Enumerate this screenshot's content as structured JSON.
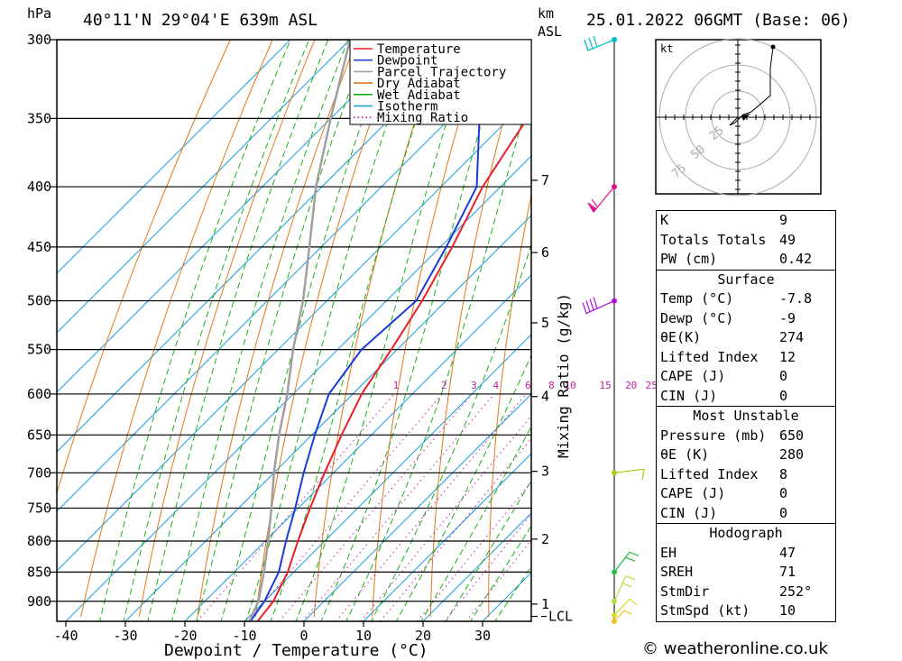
{
  "header": {
    "location": "40°11'N  29°04'E  639m  ASL",
    "datetime": "25.01.2022  06GMT  (Base: 06)",
    "left_unit": "hPa",
    "km_unit": "km",
    "asl_unit": "ASL"
  },
  "chart_data": {
    "type": "line",
    "title": "",
    "xlabel": "Dewpoint / Temperature (°C)",
    "ylabel": "hPa",
    "y2label": "Mixing Ratio (g/kg)",
    "x_ticks": [
      -40,
      -30,
      -20,
      -10,
      0,
      10,
      20,
      30
    ],
    "pressure_levels": [
      300,
      350,
      400,
      450,
      500,
      550,
      600,
      650,
      700,
      750,
      800,
      850,
      900
    ],
    "xlim": [
      -40,
      38
    ],
    "ylim": [
      936,
      300
    ],
    "km_ticks": [
      {
        "label": "7",
        "p": 395
      },
      {
        "label": "6",
        "p": 455
      },
      {
        "label": "5",
        "p": 522
      },
      {
        "label": "4",
        "p": 603
      },
      {
        "label": "3",
        "p": 698
      },
      {
        "label": "2",
        "p": 797
      },
      {
        "label": "1",
        "p": 905
      },
      {
        "label": "LCL",
        "p": 927
      }
    ],
    "mixing_ratio_labels": [
      "1",
      "2",
      "3",
      "4",
      "6",
      "8",
      "10",
      "15",
      "20",
      "25"
    ],
    "mixing_ratio_values": [
      1,
      2,
      3,
      4,
      6,
      8,
      10,
      15,
      20,
      25
    ],
    "legend": {
      "placement": "top-center",
      "entries": [
        {
          "name": "Temperature",
          "color": "#e8202a"
        },
        {
          "name": "Dewpoint",
          "color": "#1c3cd8"
        },
        {
          "name": "Parcel Trajectory",
          "color": "#a0a0a0"
        },
        {
          "name": "Dry Adiabat",
          "color": "#e07818"
        },
        {
          "name": "Wet Adiabat",
          "color": "#18b018"
        },
        {
          "name": "Isotherm",
          "color": "#189ce0"
        },
        {
          "name": "Mixing Ratio",
          "color": "#c818a8"
        }
      ]
    },
    "series": [
      {
        "name": "Temperature",
        "points": [
          [
            936,
            -7.8
          ],
          [
            900,
            -8.5
          ],
          [
            850,
            -11
          ],
          [
            800,
            -14.5
          ],
          [
            750,
            -18
          ],
          [
            700,
            -21.5
          ],
          [
            650,
            -25
          ],
          [
            600,
            -28.5
          ],
          [
            550,
            -31
          ],
          [
            500,
            -34
          ],
          [
            450,
            -38
          ],
          [
            400,
            -43
          ],
          [
            350,
            -47
          ],
          [
            300,
            -49
          ]
        ]
      },
      {
        "name": "Dewpoint",
        "points": [
          [
            936,
            -9
          ],
          [
            900,
            -10
          ],
          [
            850,
            -12.5
          ],
          [
            800,
            -16.5
          ],
          [
            750,
            -20.5
          ],
          [
            700,
            -25
          ],
          [
            650,
            -29.5
          ],
          [
            600,
            -34
          ],
          [
            550,
            -36
          ],
          [
            500,
            -35
          ],
          [
            450,
            -39
          ],
          [
            400,
            -44
          ],
          [
            350,
            -55
          ],
          [
            300,
            -67
          ]
        ]
      },
      {
        "name": "Parcel Trajectory",
        "points": [
          [
            936,
            -9.2
          ],
          [
            900,
            -11
          ],
          [
            850,
            -15
          ],
          [
            800,
            -19.5
          ],
          [
            750,
            -24.5
          ],
          [
            700,
            -30
          ],
          [
            650,
            -35.5
          ],
          [
            600,
            -41
          ],
          [
            550,
            -47.5
          ],
          [
            500,
            -54
          ],
          [
            450,
            -62
          ],
          [
            400,
            -71
          ],
          [
            350,
            -80
          ],
          [
            300,
            -90
          ]
        ]
      }
    ]
  },
  "wind_profile": {
    "barbs": [
      {
        "p": 300,
        "color": "#00c0c0"
      },
      {
        "p": 400,
        "color": "#e0108a"
      },
      {
        "p": 500,
        "color": "#b010e0"
      },
      {
        "p": 700,
        "color": "#a0d010"
      },
      {
        "p": 850,
        "color": "#20c040"
      },
      {
        "p": 900,
        "color": "#b0e040"
      },
      {
        "p": 925,
        "color": "#d0e020"
      },
      {
        "p": 936,
        "color": "#f0c020"
      }
    ]
  },
  "hodograph": {
    "unit": "kt",
    "ring_labels": [
      "25",
      "50",
      "75"
    ],
    "trace": [
      [
        0,
        0
      ],
      [
        -3,
        -3
      ],
      [
        -1,
        -2
      ],
      [
        2,
        1
      ],
      [
        5,
        2
      ],
      [
        12,
        8
      ],
      [
        12,
        18
      ],
      [
        13,
        26
      ]
    ]
  },
  "indices": {
    "main": [
      {
        "label": "K",
        "value": "9"
      },
      {
        "label": "Totals Totals",
        "value": "49"
      },
      {
        "label": "PW (cm)",
        "value": "0.42"
      }
    ],
    "surface_title": "Surface",
    "surface": [
      {
        "label": "Temp (°C)",
        "value": "-7.8"
      },
      {
        "label": "Dewp (°C)",
        "value": "-9"
      },
      {
        "label": "θE(K)",
        "value": "274"
      },
      {
        "label": "Lifted Index",
        "value": "12"
      },
      {
        "label": "CAPE (J)",
        "value": "0"
      },
      {
        "label": "CIN (J)",
        "value": "0"
      }
    ],
    "mu_title": "Most Unstable",
    "mu": [
      {
        "label": "Pressure (mb)",
        "value": "650"
      },
      {
        "label": "θE (K)",
        "value": "280"
      },
      {
        "label": "Lifted Index",
        "value": "8"
      },
      {
        "label": "CAPE (J)",
        "value": "0"
      },
      {
        "label": "CIN (J)",
        "value": "0"
      }
    ],
    "hodo_title": "Hodograph",
    "hodo": [
      {
        "label": "EH",
        "value": "47"
      },
      {
        "label": "SREH",
        "value": "71"
      },
      {
        "label": "StmDir",
        "value": "252°"
      },
      {
        "label": "StmSpd (kt)",
        "value": "10"
      }
    ]
  },
  "credit": "© weatheronline.co.uk"
}
